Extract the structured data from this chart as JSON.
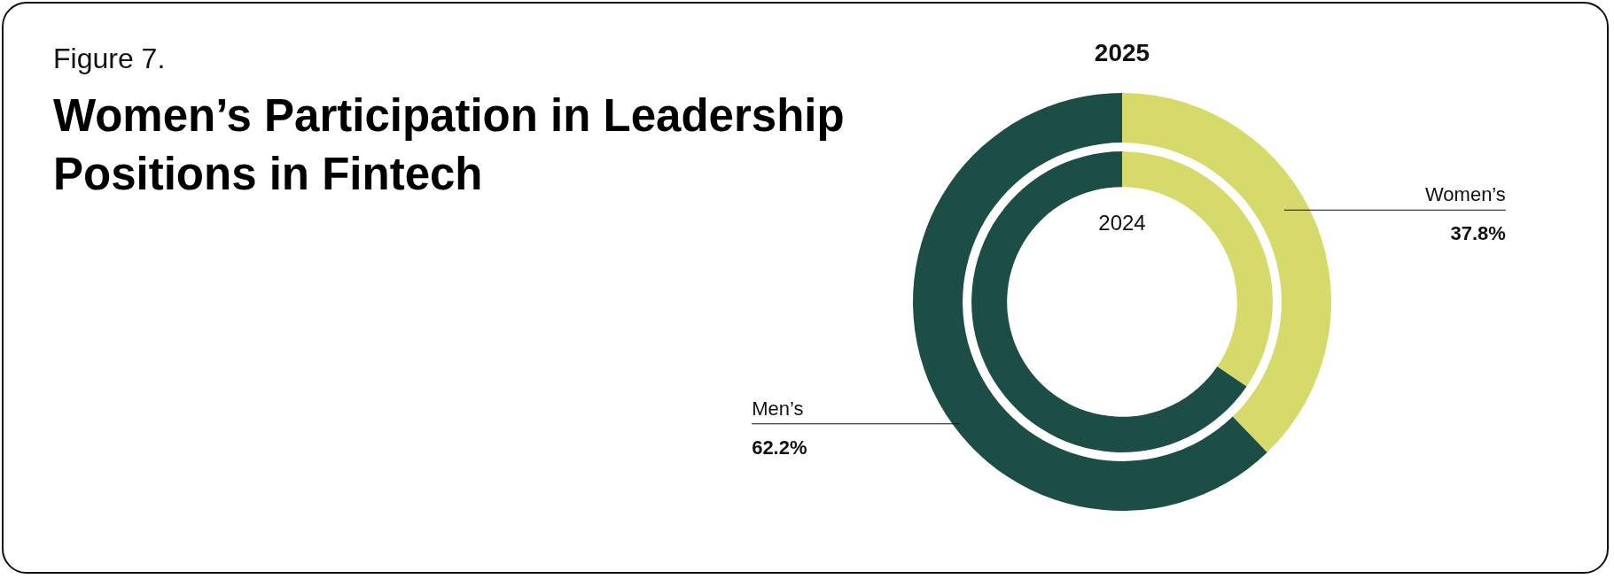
{
  "chart_data": {
    "type": "donut",
    "subtitle": "Figure 7.",
    "title": "Women’s Participation in Leadership Positions in Fintech",
    "categories": [
      "Women’s",
      "Men’s"
    ],
    "colors": [
      "#d6da6b",
      "#1d4d47"
    ],
    "series": [
      {
        "name": "2025",
        "values": [
          37.8,
          62.2
        ],
        "value_labels": [
          "37.8%",
          "62.2%"
        ]
      },
      {
        "name": "2024",
        "values": [
          34.5,
          65.5
        ]
      }
    ],
    "legend": false
  }
}
